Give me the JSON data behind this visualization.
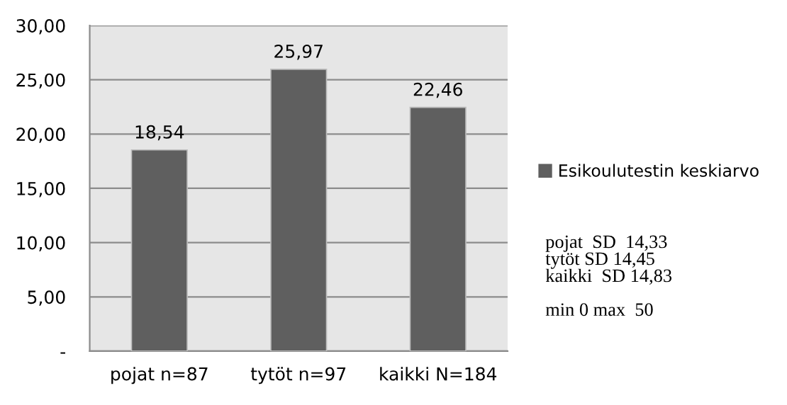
{
  "chart_data": {
    "type": "bar",
    "categories": [
      "pojat n=87",
      "tytöt n=97",
      "kaikki N=184"
    ],
    "series": [
      {
        "name": "Esikoulutestin keskiarvo",
        "color": "#5f5f5f",
        "values": [
          18.54,
          25.97,
          22.46
        ],
        "value_labels": [
          "18,54",
          "25,97",
          "22,46"
        ]
      }
    ],
    "ylim": [
      0,
      30
    ],
    "yticks": [
      {
        "value": 0,
        "label": "-"
      },
      {
        "value": 5,
        "label": "5,00"
      },
      {
        "value": 10,
        "label": "10,00"
      },
      {
        "value": 15,
        "label": "15,00"
      },
      {
        "value": 20,
        "label": "20,00"
      },
      {
        "value": 25,
        "label": "25,00"
      },
      {
        "value": 30,
        "label": "30,00"
      }
    ],
    "grid": "y",
    "legend": "right",
    "annotations": [
      "pojat  SD  14,33\ntytöt SD 14,45\nkaikki  SD 14,83\n\nmin 0 max  50"
    ]
  }
}
